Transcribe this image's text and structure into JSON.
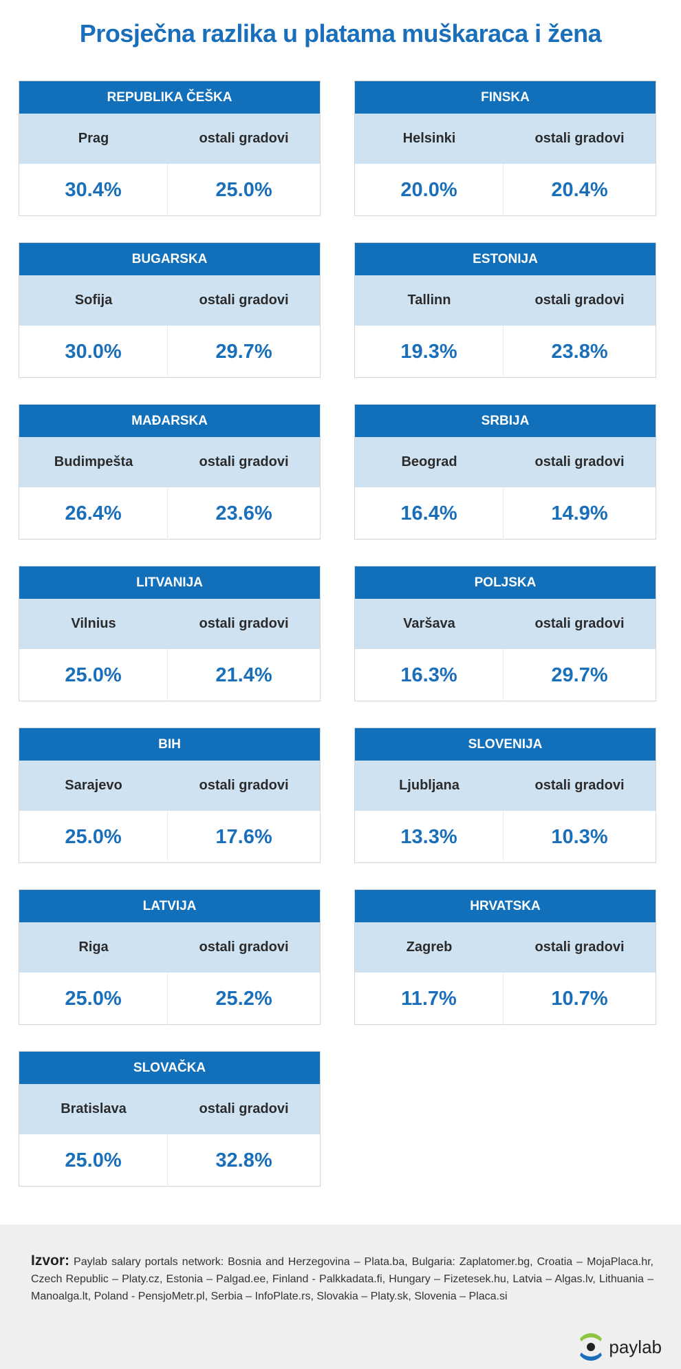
{
  "title": "Prosječna razlika u platama muškaraca i žena",
  "cards": [
    {
      "country": "REPUBLIKA ČEŠKA",
      "city": "Prag",
      "other": "ostali gradovi",
      "city_value": "30.4%",
      "other_value": "25.0%"
    },
    {
      "country": "FINSKA",
      "city": "Helsinki",
      "other": "ostali gradovi",
      "city_value": "20.0%",
      "other_value": "20.4%"
    },
    {
      "country": "BUGARSKA",
      "city": "Sofija",
      "other": "ostali gradovi",
      "city_value": "30.0%",
      "other_value": "29.7%"
    },
    {
      "country": "ESTONIJA",
      "city": "Tallinn",
      "other": "ostali gradovi",
      "city_value": "19.3%",
      "other_value": "23.8%"
    },
    {
      "country": "MAĐARSKA",
      "city": "Budimpešta",
      "other": "ostali gradovi",
      "city_value": "26.4%",
      "other_value": "23.6%"
    },
    {
      "country": "SRBIJA",
      "city": "Beograd",
      "other": "ostali gradovi",
      "city_value": "16.4%",
      "other_value": "14.9%"
    },
    {
      "country": "LITVANIJA",
      "city": "Vilnius",
      "other": "ostali gradovi",
      "city_value": "25.0%",
      "other_value": "21.4%"
    },
    {
      "country": "POLJSKA",
      "city": "Varšava",
      "other": "ostali gradovi",
      "city_value": "16.3%",
      "other_value": "29.7%"
    },
    {
      "country": "BIH",
      "city": "Sarajevo",
      "other": "ostali gradovi",
      "city_value": "25.0%",
      "other_value": "17.6%"
    },
    {
      "country": "SLOVENIJA",
      "city": "Ljubljana",
      "other": "ostali gradovi",
      "city_value": "13.3%",
      "other_value": "10.3%"
    },
    {
      "country": "LATVIJA",
      "city": "Riga",
      "other": "ostali gradovi",
      "city_value": "25.0%",
      "other_value": "25.2%"
    },
    {
      "country": "HRVATSKA",
      "city": "Zagreb",
      "other": "ostali gradovi",
      "city_value": "11.7%",
      "other_value": "10.7%"
    },
    {
      "country": "SLOVAČKA",
      "city": "Bratislava",
      "other": "ostali gradovi",
      "city_value": "25.0%",
      "other_value": "32.8%"
    }
  ],
  "footer": {
    "source_label": "Izvor:",
    "source_text": "Paylab salary portals network: Bosnia and Herzegovina – Plata.ba, Bulgaria: Zaplatomer.bg, Croatia – MojaPlaca.hr, Czech Republic – Platy.cz, Estonia – Palgad.ee, Finland - Palkkadata.fi, Hungary – Fizetesek.hu, Latvia – Algas.lv, Lithuania – Manoalga.lt, Poland - PensjoMetr.pl, Serbia – InfoPlate.rs, Slovakia – Platy.sk, Slovenia – Placa.si",
    "logo": "paylab"
  }
}
